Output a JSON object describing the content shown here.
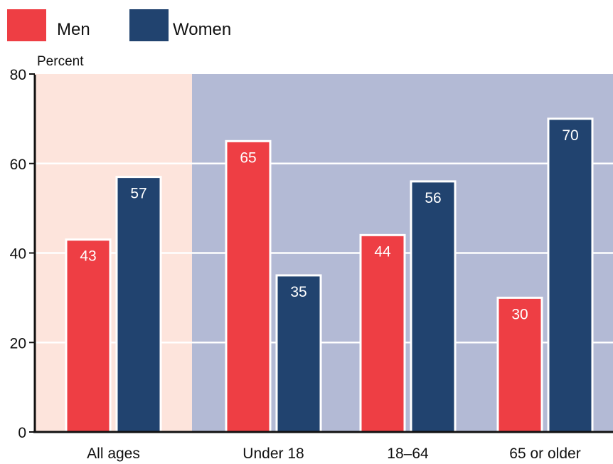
{
  "chart_data": {
    "type": "bar",
    "ylabel": "Percent",
    "xlabel": "",
    "ylim": [
      0,
      80
    ],
    "yticks": [
      0,
      20,
      40,
      60,
      80
    ],
    "grid": true,
    "legend_position": "top-left",
    "categories": [
      "All ages",
      "Under 18",
      "18–64",
      "65 or older"
    ],
    "series": [
      {
        "name": "Men",
        "color": "#ee3e44",
        "values": [
          43,
          65,
          44,
          30
        ],
        "labels": [
          "43",
          "65",
          "44",
          "30"
        ]
      },
      {
        "name": "Women",
        "color": "#21436f",
        "values": [
          57,
          35,
          56,
          70
        ],
        "labels": [
          "57",
          "35",
          "56",
          "70"
        ]
      }
    ],
    "background_colors": {
      "all_ages_panel": "#fde4dc",
      "age_groups_panel": "#b3bad5"
    }
  }
}
